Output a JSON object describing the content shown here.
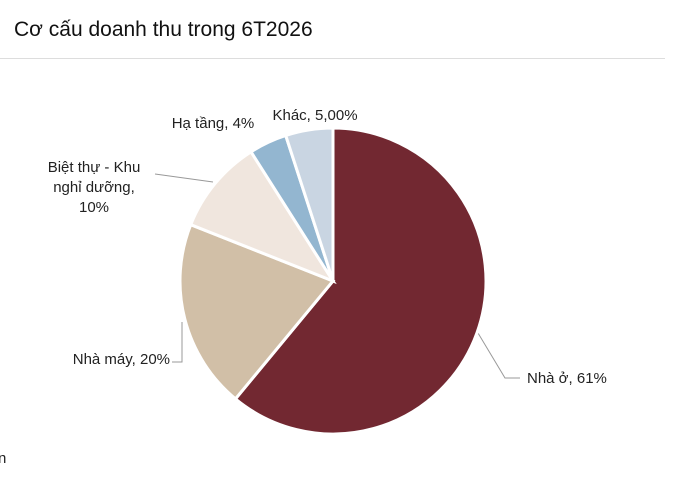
{
  "chart_data": {
    "type": "pie",
    "title": "Cơ cấu doanh thu trong 6T2026",
    "categories": [
      "Nhà ở",
      "Nhà máy",
      "Biệt thự - Khu nghỉ dưỡng",
      "Hạ tầng",
      "Khác"
    ],
    "values": [
      61,
      20,
      10,
      4,
      5
    ],
    "value_labels": [
      "Nhà ở, 61%",
      "Nhà máy, 20%",
      "Biệt thự - Khu nghỉ dưỡng, 10%",
      "Hạ tầng, 4%",
      "Khác, 5,00%"
    ],
    "colors": [
      "#722831",
      "#d1bfa7",
      "#f0e6de",
      "#93b6d0",
      "#c9d5e2"
    ],
    "note": "n"
  }
}
